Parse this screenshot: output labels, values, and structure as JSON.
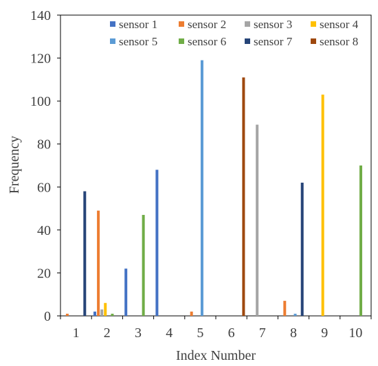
{
  "chart_data": {
    "type": "bar",
    "title": "",
    "xlabel": "Index Number",
    "ylabel": "Frequency",
    "categories": [
      "1",
      "2",
      "3",
      "4",
      "5",
      "6",
      "7",
      "8",
      "9",
      "10"
    ],
    "ylim": [
      0,
      140
    ],
    "yticks": [
      "0",
      "20",
      "40",
      "60",
      "80",
      "100",
      "120",
      "140"
    ],
    "grid": false,
    "legend_position": "top-right",
    "series": [
      {
        "name": "sensor 1",
        "color": "#4472C4",
        "values": [
          0,
          2,
          22,
          68,
          0,
          0,
          0,
          0,
          0,
          0
        ]
      },
      {
        "name": "sensor 2",
        "color": "#ED7D31",
        "values": [
          1,
          49,
          0,
          0,
          2,
          0,
          0,
          7,
          0,
          0
        ]
      },
      {
        "name": "sensor 3",
        "color": "#A5A5A5",
        "values": [
          0,
          3,
          0,
          0,
          0,
          0,
          89,
          0,
          0,
          0
        ]
      },
      {
        "name": "sensor 4",
        "color": "#FFC000",
        "values": [
          0,
          6,
          0,
          0,
          0,
          0,
          0,
          0,
          103,
          0
        ]
      },
      {
        "name": "sensor 5",
        "color": "#5B9BD5",
        "values": [
          0,
          0,
          0,
          0,
          119,
          0,
          0,
          1,
          0,
          0
        ]
      },
      {
        "name": "sensor 6",
        "color": "#70AD47",
        "values": [
          0,
          1,
          47,
          0,
          0,
          0,
          0,
          0,
          0,
          70
        ]
      },
      {
        "name": "sensor 7",
        "color": "#264478",
        "values": [
          58,
          0,
          0,
          0,
          0,
          0,
          0,
          62,
          0,
          0
        ]
      },
      {
        "name": "sensor 8",
        "color": "#9E480E",
        "values": [
          0,
          0,
          0,
          0,
          0,
          111,
          0,
          0,
          0,
          0
        ]
      }
    ]
  }
}
